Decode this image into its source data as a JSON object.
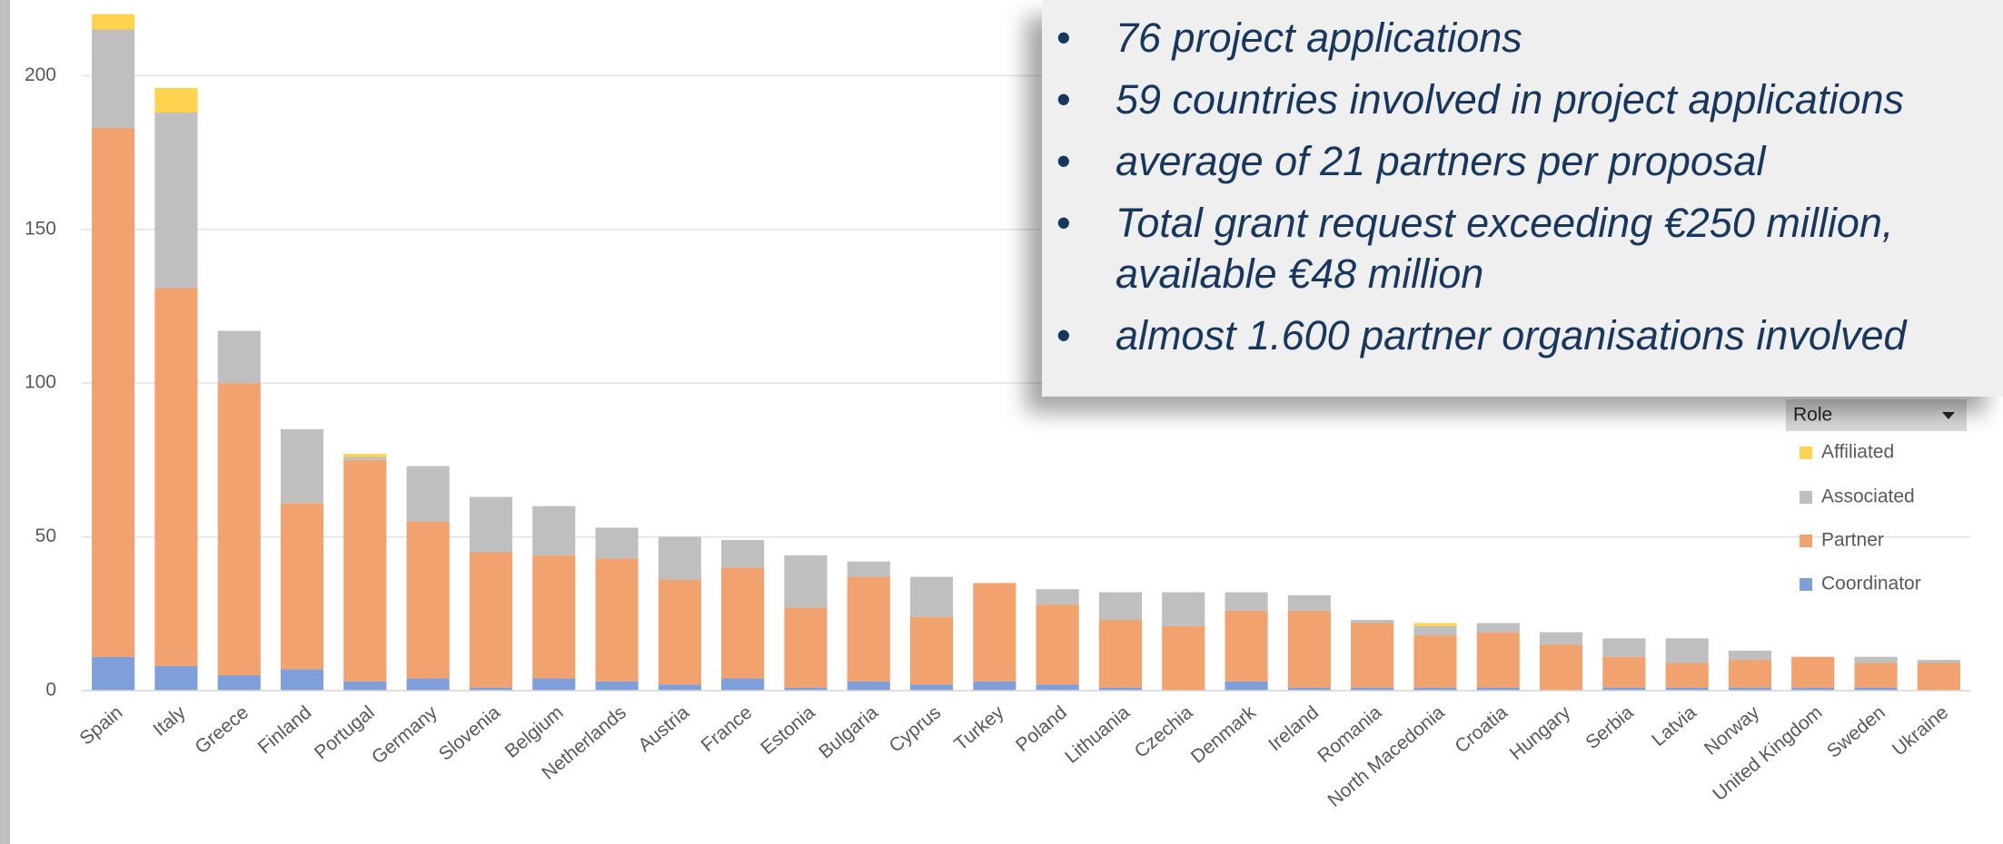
{
  "chart_data": {
    "type": "bar",
    "stacked": true,
    "categories": [
      "Spain",
      "Italy",
      "Greece",
      "Finland",
      "Portugal",
      "Germany",
      "Slovenia",
      "Belgium",
      "Netherlands",
      "Austria",
      "France",
      "Estonia",
      "Bulgaria",
      "Cyprus",
      "Turkey",
      "Poland",
      "Lithuania",
      "Czechia",
      "Denmark",
      "Ireland",
      "Romania",
      "North Macedonia",
      "Croatia",
      "Hungary",
      "Serbia",
      "Latvia",
      "Norway",
      "United Kingdom",
      "Sweden",
      "Ukraine"
    ],
    "series": [
      {
        "name": "Coordinator",
        "color": "#7f9fdb",
        "values": [
          11,
          8,
          5,
          7,
          3,
          4,
          1,
          4,
          3,
          2,
          4,
          1,
          3,
          2,
          3,
          2,
          1,
          0,
          3,
          1,
          1,
          1,
          1,
          0,
          1,
          1,
          1,
          1,
          1,
          0
        ]
      },
      {
        "name": "Partner",
        "color": "#f2a26e",
        "values": [
          172,
          123,
          95,
          54,
          72,
          51,
          44,
          40,
          40,
          34,
          36,
          26,
          34,
          22,
          32,
          26,
          22,
          21,
          23,
          25,
          21,
          17,
          18,
          15,
          10,
          8,
          9,
          10,
          8,
          9
        ]
      },
      {
        "name": "Associated",
        "color": "#bfbfbf",
        "values": [
          32,
          57,
          17,
          24,
          1,
          18,
          18,
          16,
          10,
          14,
          9,
          17,
          5,
          13,
          0,
          5,
          9,
          11,
          6,
          5,
          1,
          3,
          3,
          4,
          6,
          8,
          3,
          0,
          2,
          1
        ]
      },
      {
        "name": "Affiliated",
        "color": "#ffd34d",
        "values": [
          5,
          8,
          0,
          0,
          1,
          0,
          0,
          0,
          0,
          0,
          0,
          0,
          0,
          0,
          0,
          0,
          0,
          0,
          0,
          0,
          0,
          1,
          0,
          0,
          0,
          0,
          0,
          0,
          0,
          0
        ]
      }
    ],
    "ylim": [
      0,
      224
    ],
    "yticks": [
      0,
      50,
      100,
      150,
      200
    ],
    "grid": true,
    "legend_title": "Role",
    "legend": "right"
  },
  "bullets": [
    "76 project applications",
    "59 countries involved in project applications",
    "average of 21 partners per proposal",
    "Total grant request exceeding €250 million, available €48 million",
    "almost 1.600 partner organisations involved"
  ]
}
